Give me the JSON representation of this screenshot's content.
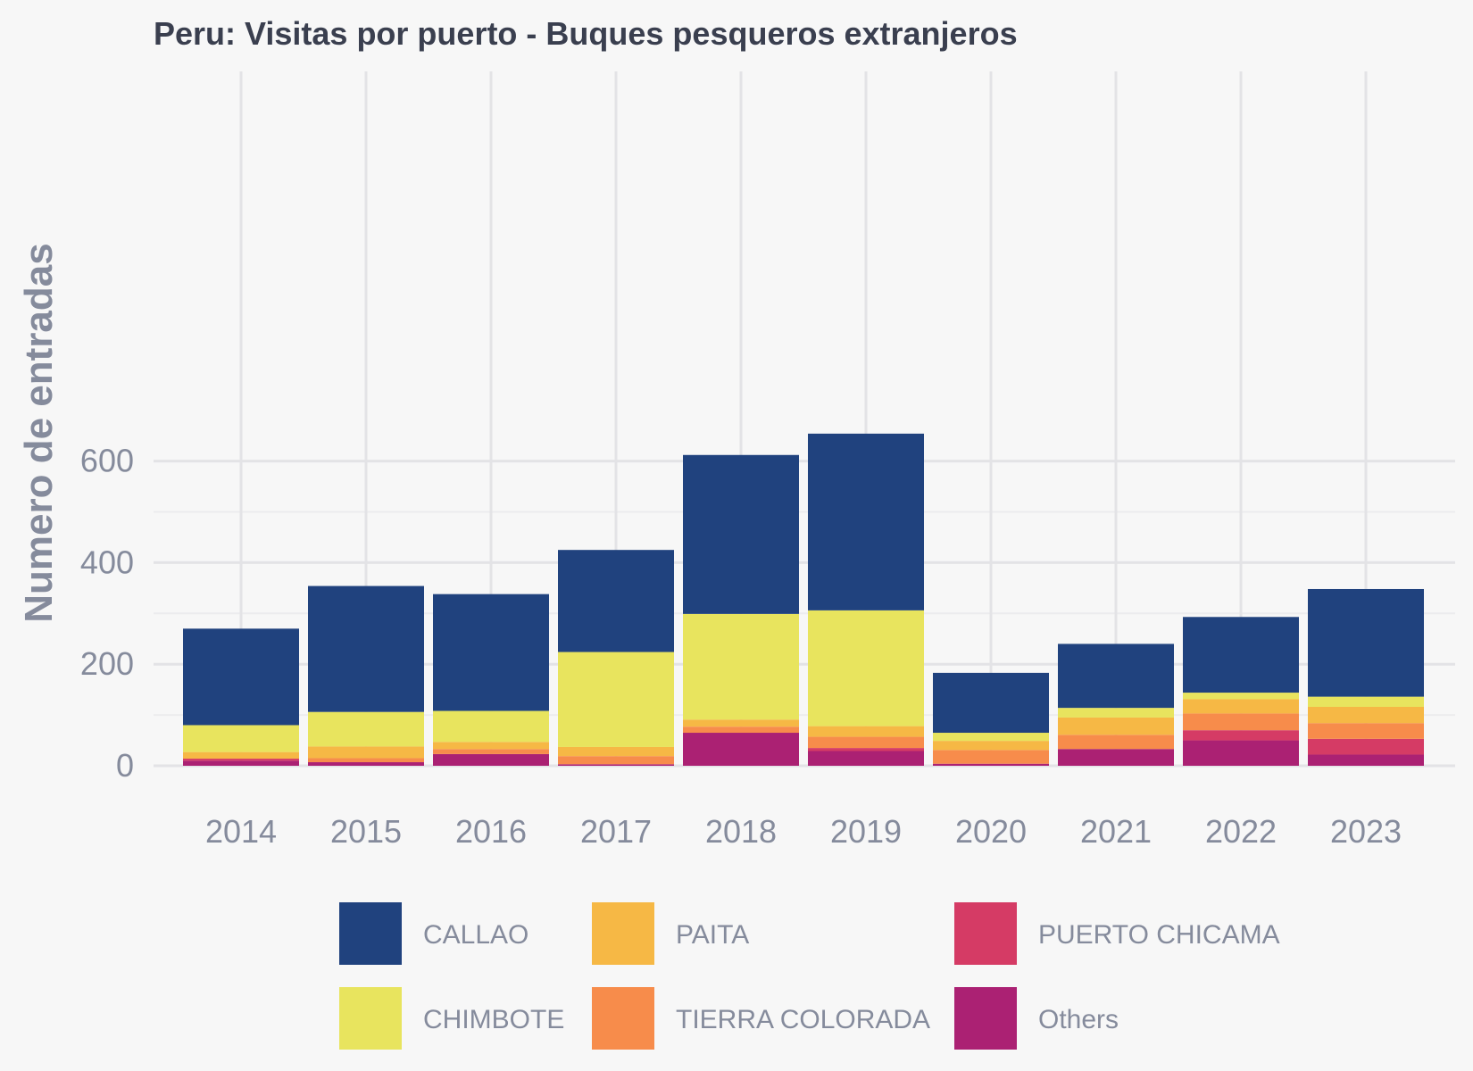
{
  "chart_data": {
    "type": "bar",
    "stacked": true,
    "title": "Peru:  Visitas por puerto - Buques pesqueros extranjeros",
    "xlabel": "",
    "ylabel": "Numero de entradas",
    "categories": [
      "2014",
      "2015",
      "2016",
      "2017",
      "2018",
      "2019",
      "2020",
      "2021",
      "2022",
      "2023"
    ],
    "ylim": [
      0,
      680
    ],
    "yticks": [
      0,
      200,
      400,
      600
    ],
    "grid": true,
    "legend_position": "bottom",
    "series": [
      {
        "name": "Others",
        "color": "#ab2173",
        "values": [
          10,
          7,
          23,
          3,
          65,
          29,
          4,
          33,
          50,
          22
        ]
      },
      {
        "name": "PUERTO CHICAMA",
        "color": "#d53b65",
        "values": [
          4,
          0,
          0,
          0,
          0,
          6,
          0,
          0,
          20,
          31
        ]
      },
      {
        "name": "TIERRA COLORADA",
        "color": "#f78c4b",
        "values": [
          0,
          8,
          10,
          16,
          12,
          22,
          27,
          28,
          33,
          31
        ]
      },
      {
        "name": "PAITA",
        "color": "#f6b845",
        "values": [
          13,
          23,
          14,
          18,
          14,
          21,
          18,
          34,
          28,
          32
        ]
      },
      {
        "name": "CHIMBOTE",
        "color": "#e8e45e",
        "values": [
          53,
          68,
          61,
          187,
          208,
          228,
          16,
          19,
          13,
          20
        ]
      },
      {
        "name": "CALLAO",
        "color": "#20427e",
        "values": [
          190,
          248,
          230,
          201,
          313,
          348,
          118,
          126,
          149,
          212
        ]
      }
    ],
    "legend_order": [
      "CALLAO",
      "CHIMBOTE",
      "PAITA",
      "TIERRA COLORADA",
      "PUERTO CHICAMA",
      "Others"
    ]
  }
}
